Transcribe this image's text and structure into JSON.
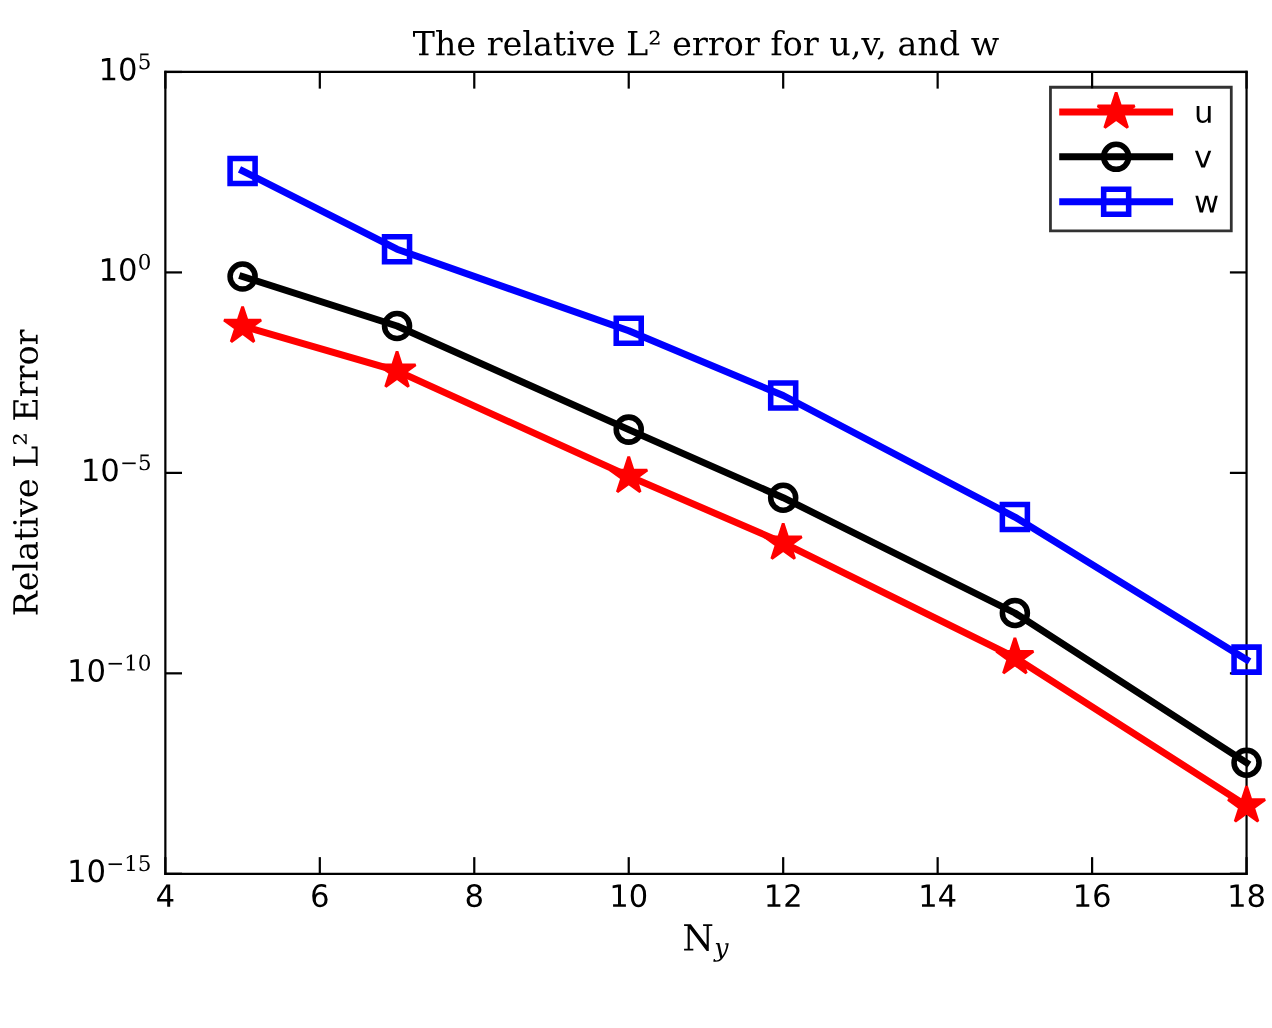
{
  "chart_data": {
    "type": "line",
    "title": "The relative L² error for u,v, and w",
    "xlabel": "N$_{y}$",
    "ylabel": "Relative L² Error",
    "x": [
      5,
      7,
      10,
      12,
      15,
      18
    ],
    "series": [
      {
        "name": "u",
        "color": "#ff0000",
        "marker": "star",
        "values": [
          0.046,
          0.0035,
          8.3e-06,
          1.8e-07,
          2.5e-10,
          5e-14
        ]
      },
      {
        "name": "v",
        "color": "#000000",
        "marker": "circle",
        "values": [
          0.79,
          0.046,
          0.00012,
          2.4e-06,
          3.2e-09,
          5.9e-13
        ]
      },
      {
        "name": "w",
        "color": "#0000ff",
        "marker": "square",
        "values": [
          340,
          3.8,
          0.035,
          0.00085,
          7.9e-07,
          2.2e-10
        ]
      }
    ],
    "log": "y",
    "xlim": [
      4,
      18
    ],
    "xticks": [
      4,
      6,
      8,
      10,
      12,
      14,
      16,
      18
    ],
    "ylim": [
      1e-15,
      100000.0
    ],
    "yticks": [
      {
        "value": 1e-15,
        "label": "10$^{−15}$"
      },
      {
        "value": 1e-10,
        "label": "10$^{−10}$"
      },
      {
        "value": 1e-05,
        "label": "10$^{−5}$"
      },
      {
        "value": 1,
        "label": "10$^{0}$"
      },
      {
        "value": 100000.0,
        "label": "10$^{5}$"
      }
    ],
    "grid": false,
    "legend": "top right",
    "line_style": "solid"
  }
}
